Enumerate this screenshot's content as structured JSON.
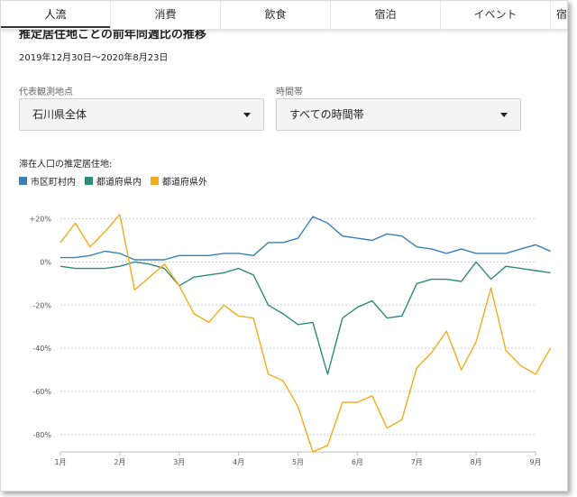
{
  "tabs": [
    "人流",
    "消費",
    "飲食",
    "宿泊",
    "イベント",
    "宿"
  ],
  "heading": "推定居住地ごとの前年同週比の推移",
  "date_range": "2019年12月30日〜2020年8月23日",
  "filters": {
    "location_label": "代表観測地点",
    "location_value": "石川県全体",
    "time_label": "時間帯",
    "time_value": "すべての時間帯"
  },
  "legend_title": "滞在人口の推定居住地:",
  "colors": {
    "city": "#3a7fb5",
    "prefecture": "#2e8a7a",
    "outside": "#f2ac1c"
  },
  "chart_data": {
    "type": "line",
    "xlabel": "",
    "ylabel": "",
    "ylim": [
      -88,
      24
    ],
    "xlim": [
      0,
      8.35
    ],
    "x_ticks": [
      0,
      1,
      2,
      3,
      4,
      5,
      6,
      7,
      8,
      9
    ],
    "x_tick_labels": [
      "1月",
      "2月",
      "3月",
      "4月",
      "5月",
      "6月",
      "7月",
      "8月",
      "9月"
    ],
    "y_ticks": [
      20,
      0,
      -20,
      -40,
      -60,
      -80
    ],
    "y_tick_labels": [
      "+20%",
      "0%",
      "-20%",
      "-40%",
      "-60%",
      "-80%"
    ],
    "grid": "horizontal dotted",
    "x": [
      0.0,
      0.25,
      0.5,
      0.75,
      1.0,
      1.25,
      1.5,
      1.75,
      2.0,
      2.25,
      2.5,
      2.75,
      3.0,
      3.25,
      3.5,
      3.75,
      4.0,
      4.25,
      4.5,
      4.75,
      5.0,
      5.25,
      5.5,
      5.75,
      6.0,
      6.25,
      6.5,
      6.75,
      7.0,
      7.25,
      7.5,
      7.75,
      8.0,
      8.25
    ],
    "series": [
      {
        "name": "市区町村内",
        "color_key": "city",
        "values": [
          2,
          2,
          3,
          5,
          4,
          1,
          1,
          1,
          3,
          3,
          3,
          4,
          4,
          3,
          9,
          9,
          11,
          21,
          18,
          12,
          11,
          10,
          13,
          12,
          7,
          6,
          4,
          6,
          4,
          4,
          4,
          6,
          8,
          5
        ]
      },
      {
        "name": "都道府県内",
        "color_key": "prefecture",
        "values": [
          -2,
          -3,
          -3,
          -3,
          -2,
          0,
          -1,
          -3,
          -11,
          -7,
          -6,
          -5,
          -3,
          -6,
          -20,
          -24,
          -29,
          -28,
          -52,
          -26,
          -21,
          -18,
          -26,
          -25,
          -10,
          -8,
          -8,
          -9,
          0,
          -8,
          -2,
          -3,
          -4,
          -5
        ]
      },
      {
        "name": "都道府県外",
        "color_key": "outside",
        "values": [
          9,
          18,
          7,
          14,
          22,
          -13,
          -7,
          -1,
          -11,
          -24,
          -28,
          -20,
          -25,
          -26,
          -52,
          -55,
          -67,
          -88,
          -85,
          -65,
          -65,
          -62,
          -77,
          -73,
          -49,
          -42,
          -32,
          -50,
          -37,
          -12,
          -41,
          -48,
          -52,
          -40
        ]
      }
    ]
  }
}
